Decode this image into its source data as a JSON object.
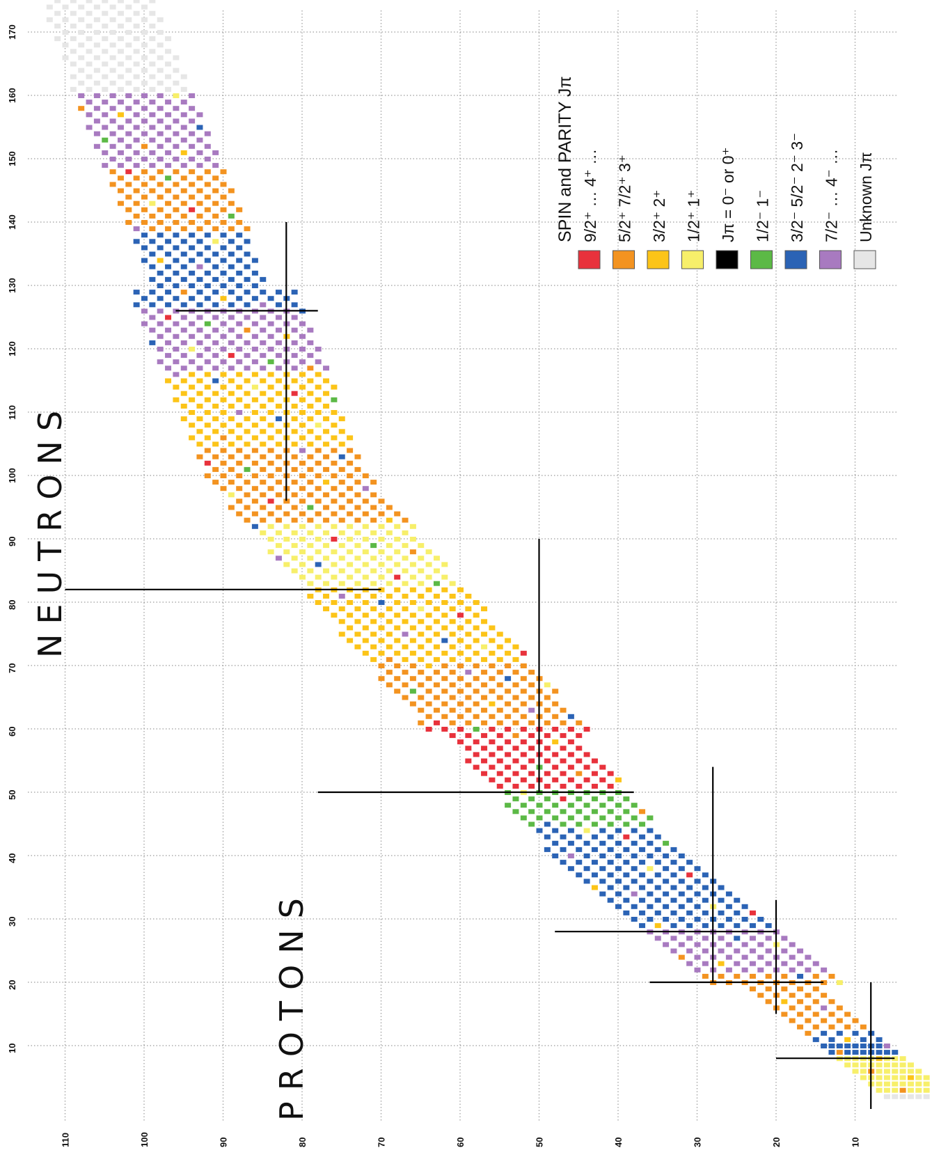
{
  "chart_data": {
    "type": "heatmap",
    "title": "",
    "xlabel": "NEUTRONS",
    "ylabel": "PROTONS",
    "x_axis": {
      "range": [
        0,
        180
      ],
      "ticks": [
        "10",
        "20",
        "30",
        "40",
        "50",
        "60",
        "70",
        "80",
        "90",
        "100",
        "110",
        "120",
        "130",
        "140",
        "150",
        "160",
        "170",
        "180"
      ]
    },
    "y_axis": {
      "range": [
        0,
        115
      ],
      "ticks": [
        "10",
        "20",
        "30",
        "40",
        "50",
        "60",
        "70",
        "80",
        "90",
        "100",
        "110"
      ]
    },
    "grid": true,
    "magic_numbers": {
      "protons": [
        8,
        20,
        28,
        50,
        82
      ],
      "neutrons": [
        8,
        20,
        28,
        50,
        82,
        126
      ]
    },
    "legend": {
      "title": "SPIN and PARITY  Jπ",
      "placement": "right",
      "entries": [
        {
          "key": "9/2+",
          "label": "9/2⁺  …  4⁺ …",
          "color": "#e8323c"
        },
        {
          "key": "5/2+",
          "label": "5/2⁺ 7/2⁺ 3⁺",
          "color": "#f39320"
        },
        {
          "key": "3/2+",
          "label": "3/2⁺       2⁺",
          "color": "#fcc418"
        },
        {
          "key": "1/2+",
          "label": "1/2⁺       1⁺",
          "color": "#f7ef6a"
        },
        {
          "key": "0",
          "label": "Jπ  =  0⁻  or 0⁺",
          "color": "#000000"
        },
        {
          "key": "1/2-",
          "label": "1/2⁻       1⁻",
          "color": "#5cb946"
        },
        {
          "key": "3/2-",
          "label": "3/2⁻  5/2⁻  2⁻  3⁻",
          "color": "#2b63b5"
        },
        {
          "key": "7/2-",
          "label": "7/2⁻   …   4⁻ …",
          "color": "#a87ac0"
        },
        {
          "key": "unk",
          "label": "Unknown Jπ",
          "color": "#e6e6e6"
        }
      ]
    },
    "legend_box_colors": {
      "9/2+": "#e8323c",
      "5/2+": "#f39320",
      "3/2+": "#fcc418",
      "1/2+": "#f7ef6a",
      "0": "#000000",
      "1/2-": "#5cb946",
      "3/2-": "#2b63b5",
      "7/2-": "#a87ac0",
      "unk": "#e6e6e6"
    },
    "bands": [
      {
        "n": [
          3,
          8
        ],
        "key": "1/2+"
      },
      {
        "n": [
          9,
          12
        ],
        "key": "3/2-"
      },
      {
        "n": [
          13,
          21
        ],
        "key": "5/2+"
      },
      {
        "n": [
          22,
          28
        ],
        "key": "7/2-"
      },
      {
        "n": [
          29,
          35
        ],
        "key": "3/2-"
      },
      {
        "n": [
          36,
          44
        ],
        "key": "3/2-"
      },
      {
        "n": [
          45,
          50
        ],
        "key": "1/2-"
      },
      {
        "n": [
          51,
          60
        ],
        "key": "9/2+"
      },
      {
        "n": [
          61,
          70
        ],
        "key": "5/2+"
      },
      {
        "n": [
          71,
          82
        ],
        "key": "3/2+"
      },
      {
        "n": [
          83,
          92
        ],
        "key": "1/2+"
      },
      {
        "n": [
          93,
          104
        ],
        "key": "5/2+"
      },
      {
        "n": [
          105,
          116
        ],
        "key": "3/2+"
      },
      {
        "n": [
          117,
          126
        ],
        "key": "7/2-"
      },
      {
        "n": [
          127,
          138
        ],
        "key": "3/2-"
      },
      {
        "n": [
          139,
          148
        ],
        "key": "5/2+"
      },
      {
        "n": [
          149,
          160
        ],
        "key": "7/2-"
      },
      {
        "n": [
          161,
          180
        ],
        "key": "unk"
      }
    ]
  }
}
